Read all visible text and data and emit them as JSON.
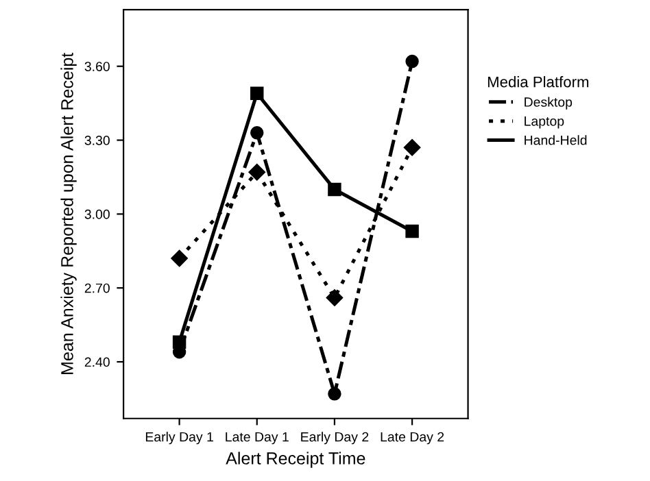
{
  "chart_data": {
    "type": "line",
    "xlabel": "Alert Receipt Time",
    "ylabel": "Mean Anxiety Reported upon Alert Receipt",
    "legend_title": "Media Platform",
    "categories": [
      "Early Day 1",
      "Late Day 1",
      "Early Day 2",
      "Late Day 2"
    ],
    "series": [
      {
        "name": "Desktop",
        "color": "#000000",
        "line_style": "dashdot",
        "marker": "circle",
        "values": [
          2.44,
          3.33,
          2.27,
          3.62
        ]
      },
      {
        "name": "Laptop",
        "color": "#000000",
        "line_style": "dotted",
        "marker": "diamond",
        "values": [
          2.82,
          3.17,
          2.66,
          3.27
        ]
      },
      {
        "name": "Hand-Held",
        "color": "#000000",
        "line_style": "solid",
        "marker": "square",
        "values": [
          2.48,
          3.49,
          3.1,
          2.93
        ]
      }
    ],
    "ylim": [
      2.17,
      3.83
    ],
    "yticks": [
      {
        "value": 2.4,
        "label": "2.40"
      },
      {
        "value": 2.7,
        "label": "2.70"
      },
      {
        "value": 3.0,
        "label": "3.00"
      },
      {
        "value": 3.3,
        "label": "3.30"
      },
      {
        "value": 3.6,
        "label": "3.60"
      }
    ],
    "grid": false,
    "legend": "right"
  }
}
